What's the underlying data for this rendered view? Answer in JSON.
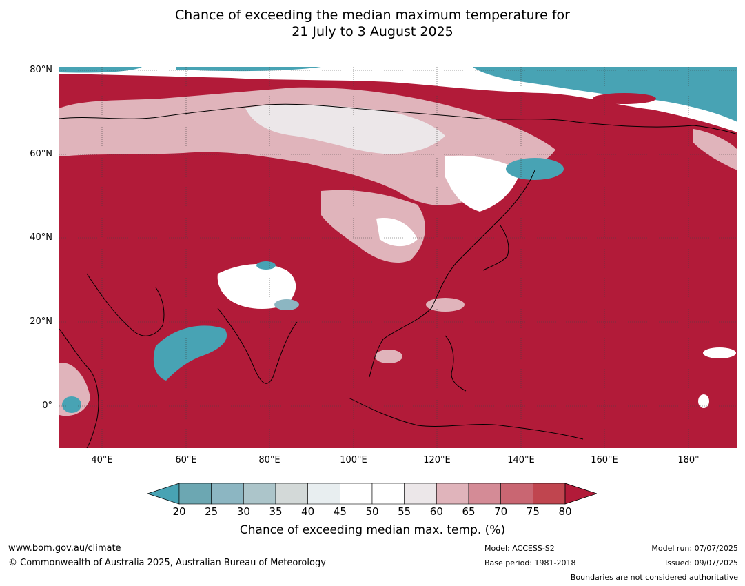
{
  "title": {
    "line1": "Chance of exceeding the median maximum temperature for",
    "line2": "21 July to 3 August 2025"
  },
  "map": {
    "lat_labels": [
      "80°N",
      "60°N",
      "40°N",
      "20°N",
      "0°"
    ],
    "lon_labels": [
      "40°E",
      "60°E",
      "80°E",
      "100°E",
      "120°E",
      "140°E",
      "160°E",
      "180°"
    ],
    "colors": {
      "ocean_high": "#b21b39",
      "band_below_20": "#48a3b4",
      "band_white": "#ffffff"
    }
  },
  "colorbar": {
    "ticks": [
      "20",
      "25",
      "30",
      "35",
      "40",
      "45",
      "50",
      "55",
      "60",
      "65",
      "70",
      "75",
      "80"
    ],
    "colors": [
      "#48a3b4",
      "#6ca7b2",
      "#8cb6c2",
      "#acc5ca",
      "#d3d9d8",
      "#e8eef0",
      "#ffffff",
      "#ffffff",
      "#ece7e9",
      "#e0b4bb",
      "#d48b96",
      "#c96672",
      "#c0454f",
      "#b21b39"
    ],
    "label": "Chance of exceeding median max. temp. (%)"
  },
  "footer": {
    "website": "www.bom.gov.au/climate",
    "copyright": "© Commonwealth of Australia 2025, Australian Bureau of Meteorology",
    "model": "Model: ACCESS-S2",
    "base_period": "Base period: 1981-2018",
    "model_run": "Model run: 07/07/2025",
    "issued": "Issued: 09/07/2025",
    "boundaries": "Boundaries are not considered authoritative"
  }
}
